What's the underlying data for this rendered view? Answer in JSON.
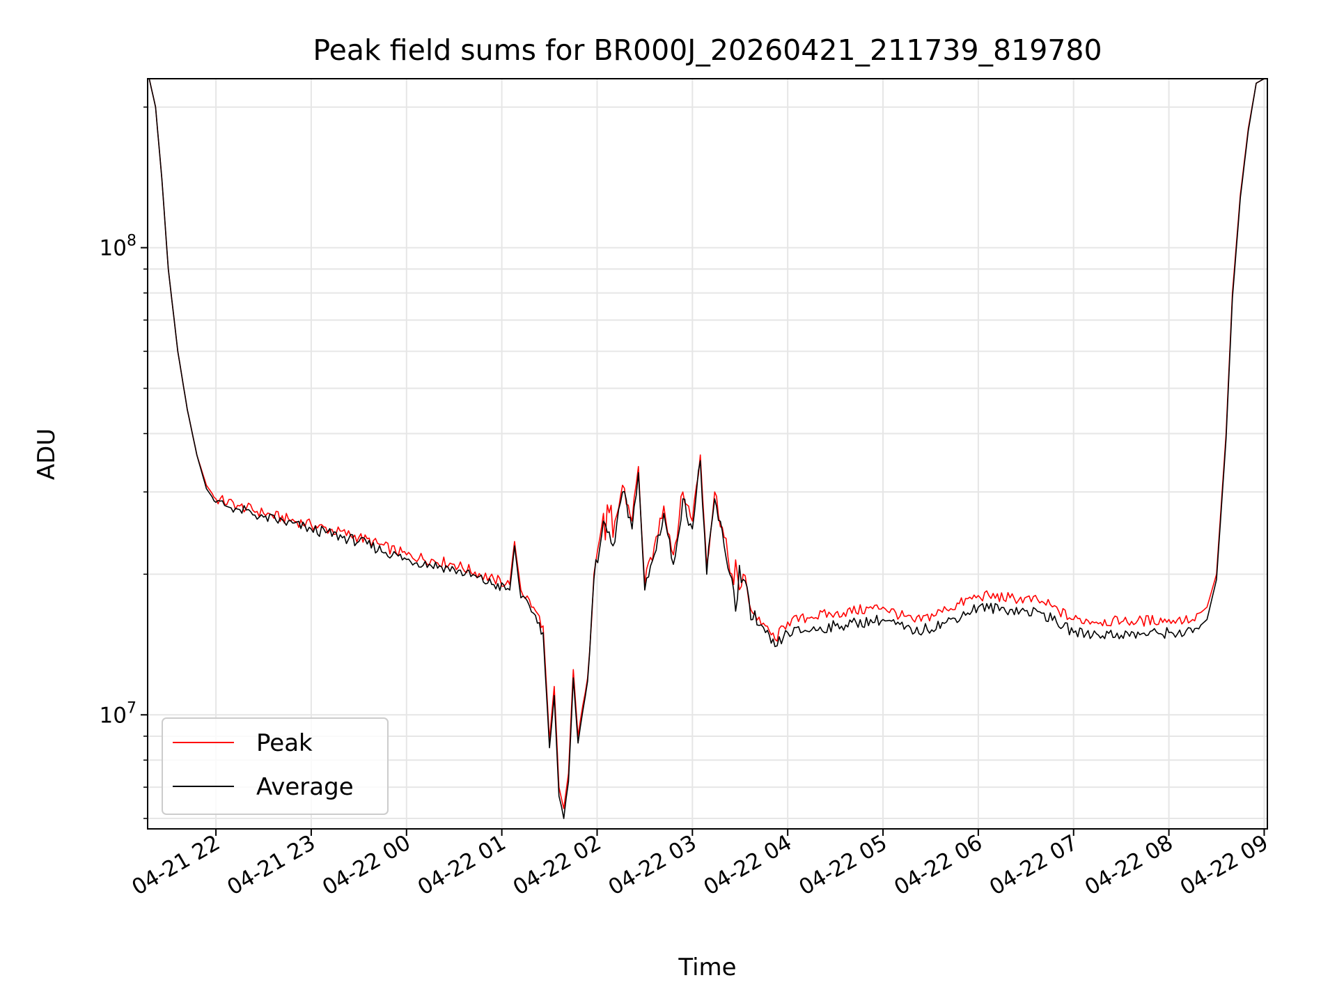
{
  "chart_data": {
    "type": "line",
    "title": "Peak field sums for BR000J_20260421_211739_819780",
    "xlabel": "Time",
    "ylabel": "ADU",
    "yscale": "log",
    "ylim": [
      5700000,
      230000000
    ],
    "xlim": [
      "2026-04-21 21:17",
      "2026-04-22 09:02"
    ],
    "grid": true,
    "legend_position": "lower-left",
    "x_ticks": [
      "04-21 22",
      "04-21 23",
      "04-22 00",
      "04-22 01",
      "04-22 02",
      "04-22 03",
      "04-22 04",
      "04-22 05",
      "04-22 06",
      "04-22 07",
      "04-22 08",
      "04-22 09"
    ],
    "y_ticks": [
      {
        "value": 10000000,
        "label": "10^7"
      },
      {
        "value": 100000000,
        "label": "10^8"
      }
    ],
    "x": [
      "2026-04-21 21:18",
      "2026-04-21 21:22",
      "2026-04-21 21:26",
      "2026-04-21 21:30",
      "2026-04-21 21:36",
      "2026-04-21 21:42",
      "2026-04-21 21:48",
      "2026-04-21 21:54",
      "2026-04-21 22:00",
      "2026-04-21 22:15",
      "2026-04-21 22:30",
      "2026-04-21 23:00",
      "2026-04-21 23:30",
      "2026-04-22 00:00",
      "2026-04-22 00:30",
      "2026-04-22 00:55",
      "2026-04-22 01:05",
      "2026-04-22 01:08",
      "2026-04-22 01:12",
      "2026-04-22 01:20",
      "2026-04-22 01:26",
      "2026-04-22 01:30",
      "2026-04-22 01:33",
      "2026-04-22 01:36",
      "2026-04-22 01:39",
      "2026-04-22 01:42",
      "2026-04-22 01:45",
      "2026-04-22 01:48",
      "2026-04-22 01:51",
      "2026-04-22 01:54",
      "2026-04-22 01:58",
      "2026-04-22 02:04",
      "2026-04-22 02:10",
      "2026-04-22 02:16",
      "2026-04-22 02:22",
      "2026-04-22 02:26",
      "2026-04-22 02:30",
      "2026-04-22 02:36",
      "2026-04-22 02:42",
      "2026-04-22 02:48",
      "2026-04-22 02:54",
      "2026-04-22 03:00",
      "2026-04-22 03:05",
      "2026-04-22 03:09",
      "2026-04-22 03:14",
      "2026-04-22 03:20",
      "2026-04-22 03:26",
      "2026-04-22 03:32",
      "2026-04-22 03:38",
      "2026-04-22 03:46",
      "2026-04-22 03:52",
      "2026-04-22 04:00",
      "2026-04-22 04:15",
      "2026-04-22 04:30",
      "2026-04-22 05:00",
      "2026-04-22 05:20",
      "2026-04-22 05:40",
      "2026-04-22 06:00",
      "2026-04-22 06:20",
      "2026-04-22 06:40",
      "2026-04-22 07:00",
      "2026-04-22 07:30",
      "2026-04-22 08:00",
      "2026-04-22 08:15",
      "2026-04-22 08:24",
      "2026-04-22 08:30",
      "2026-04-22 08:36",
      "2026-04-22 08:40",
      "2026-04-22 08:45",
      "2026-04-22 08:50",
      "2026-04-22 08:55",
      "2026-04-22 09:00"
    ],
    "series": [
      {
        "name": "Peak",
        "color": "#ff0000",
        "values": [
          230000000,
          200000000,
          140000000,
          90000000,
          60000000,
          45000000,
          36000000,
          31000000,
          29000000,
          28000000,
          27000000,
          25500000,
          24000000,
          22000000,
          21000000,
          19500000,
          19000000,
          23500000,
          18500000,
          17000000,
          15500000,
          8800000,
          11500000,
          7000000,
          6300000,
          7500000,
          12500000,
          9000000,
          10500000,
          12000000,
          20000000,
          27000000,
          24000000,
          31000000,
          26000000,
          34000000,
          19000000,
          23000000,
          28000000,
          22000000,
          30000000,
          26000000,
          36000000,
          21000000,
          30000000,
          24000000,
          19000000,
          20000000,
          16500000,
          15500000,
          14500000,
          15800000,
          16200000,
          16500000,
          17000000,
          15800000,
          16800000,
          18000000,
          17800000,
          17500000,
          16000000,
          15800000,
          16000000,
          16000000,
          17000000,
          20000000,
          40000000,
          80000000,
          130000000,
          180000000,
          225000000,
          230000000
        ]
      },
      {
        "name": "Average",
        "color": "#000000",
        "values": [
          230000000,
          200000000,
          140000000,
          90000000,
          60000000,
          45000000,
          36000000,
          30500000,
          28500000,
          27500000,
          26500000,
          25000000,
          23500000,
          21500000,
          20500000,
          19000000,
          18500000,
          23000000,
          17800000,
          16500000,
          15000000,
          8500000,
          11000000,
          6700000,
          6000000,
          7200000,
          12000000,
          8700000,
          10200000,
          11800000,
          19500000,
          26000000,
          23000000,
          30000000,
          25000000,
          33000000,
          18500000,
          22000000,
          27000000,
          21000000,
          29000000,
          25000000,
          35000000,
          20000000,
          29000000,
          23000000,
          18500000,
          19500000,
          16000000,
          15000000,
          14000000,
          15000000,
          15200000,
          15500000,
          16000000,
          15000000,
          15800000,
          17000000,
          16800000,
          16500000,
          15000000,
          14800000,
          15000000,
          15000000,
          16000000,
          19500000,
          39000000,
          78000000,
          128000000,
          178000000,
          225000000,
          230000000
        ]
      }
    ]
  }
}
